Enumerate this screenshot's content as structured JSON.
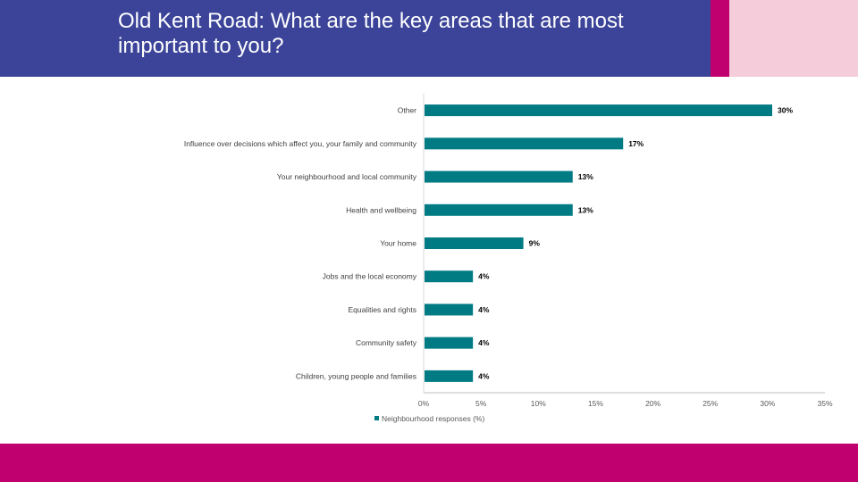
{
  "slide": {
    "title": "Old Kent Road: What are the key areas that are most important to you?"
  },
  "colors": {
    "header": "#3c4499",
    "magenta": "#c0006e",
    "pink": "#f5ccd9",
    "bar": "#007b84"
  },
  "chart_data": {
    "type": "bar",
    "orientation": "horizontal",
    "categories": [
      "Other",
      "Influence over decisions which affect you, your family and community",
      "Your neighbourhood and local community",
      "Health and wellbeing",
      "Your home",
      "Jobs and the local economy",
      "Equalities and rights",
      "Community safety",
      "Children, young people and families"
    ],
    "series": [
      {
        "name": "Neighbourhood responses (%)",
        "values": [
          30.4,
          17.4,
          13.0,
          13.0,
          8.7,
          4.3,
          4.3,
          4.3,
          4.3
        ],
        "data_labels": [
          "30%",
          "17%",
          "13%",
          "13%",
          "9%",
          "4%",
          "4%",
          "4%",
          "4%"
        ]
      }
    ],
    "xlim": [
      0,
      35
    ],
    "x_ticks": [
      "0%",
      "5%",
      "10%",
      "15%",
      "20%",
      "25%",
      "30%",
      "35%"
    ],
    "grid": false,
    "legend": "bottom"
  }
}
